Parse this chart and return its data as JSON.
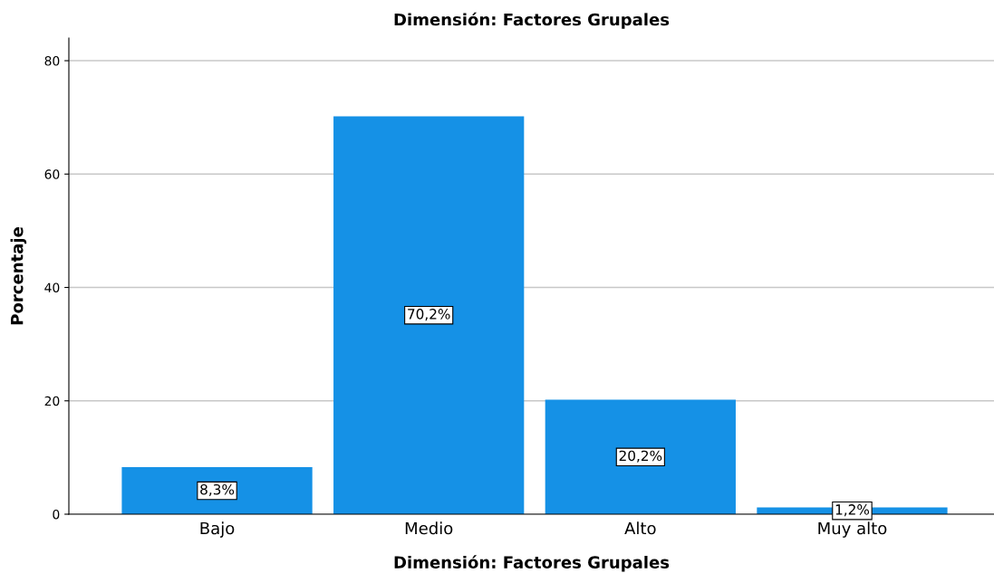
{
  "chart_data": {
    "type": "bar",
    "title": "Dimensión: Factores Grupales",
    "xlabel": "Dimensión: Factores Grupales",
    "ylabel": "Porcentaje",
    "categories": [
      "Bajo",
      "Medio",
      "Alto",
      "Muy alto"
    ],
    "values": [
      8.3,
      70.2,
      20.2,
      1.2
    ],
    "value_labels": [
      "8,3%",
      "70,2%",
      "20,2%",
      "1,2%"
    ],
    "color": "#1591e6",
    "ylim": [
      0,
      84
    ],
    "yticks": [
      0,
      20,
      40,
      60,
      80
    ],
    "grid": "y"
  }
}
